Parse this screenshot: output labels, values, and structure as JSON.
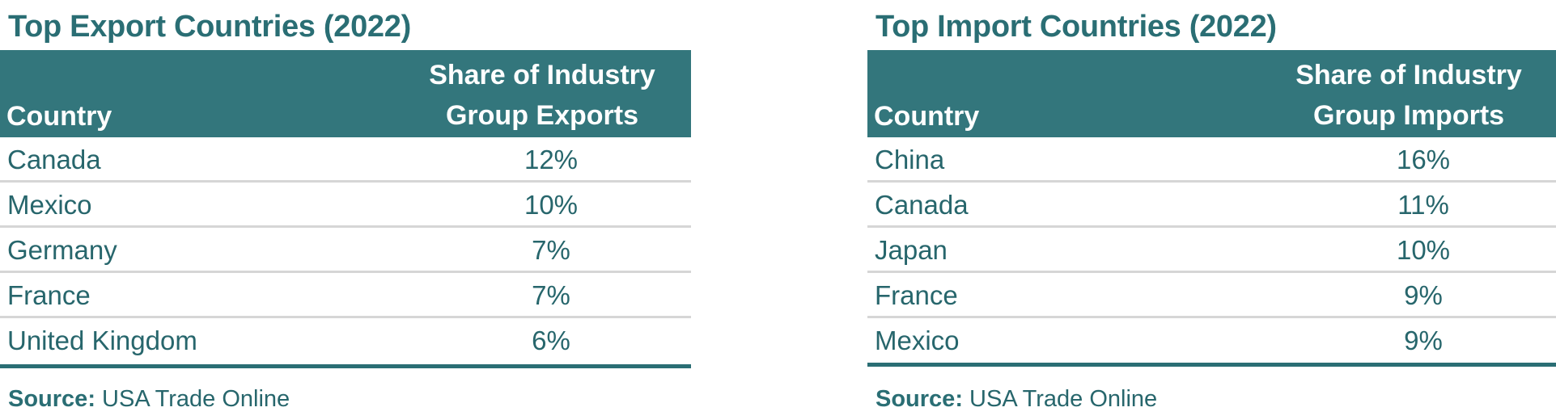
{
  "colors": {
    "header_bg": "#33767C",
    "header_text": "#FFFFFF",
    "title_text": "#2A6E74",
    "body_text": "#27666C",
    "row_divider": "#D6D6D6",
    "bottom_rule": "#2A6E74"
  },
  "exports": {
    "title": "Top Export Countries (2022)",
    "columns": {
      "country": "Country",
      "share_line1": "Share of Industry",
      "share_line2": "Group Exports"
    },
    "rows": [
      {
        "country": "Canada",
        "share": "12%"
      },
      {
        "country": "Mexico",
        "share": "10%"
      },
      {
        "country": "Germany",
        "share": "7%"
      },
      {
        "country": "France",
        "share": "7%"
      },
      {
        "country": "United Kingdom",
        "share": "6%"
      }
    ],
    "source_label": "Source:",
    "source_value": "USA Trade Online"
  },
  "imports": {
    "title": "Top Import Countries (2022)",
    "columns": {
      "country": "Country",
      "share_line1": "Share of Industry",
      "share_line2": "Group Imports"
    },
    "rows": [
      {
        "country": "China",
        "share": "16%"
      },
      {
        "country": "Canada",
        "share": "11%"
      },
      {
        "country": "Japan",
        "share": "10%"
      },
      {
        "country": "France",
        "share": "9%"
      },
      {
        "country": "Mexico",
        "share": "9%"
      }
    ],
    "source_label": "Source:",
    "source_value": "USA Trade Online"
  }
}
